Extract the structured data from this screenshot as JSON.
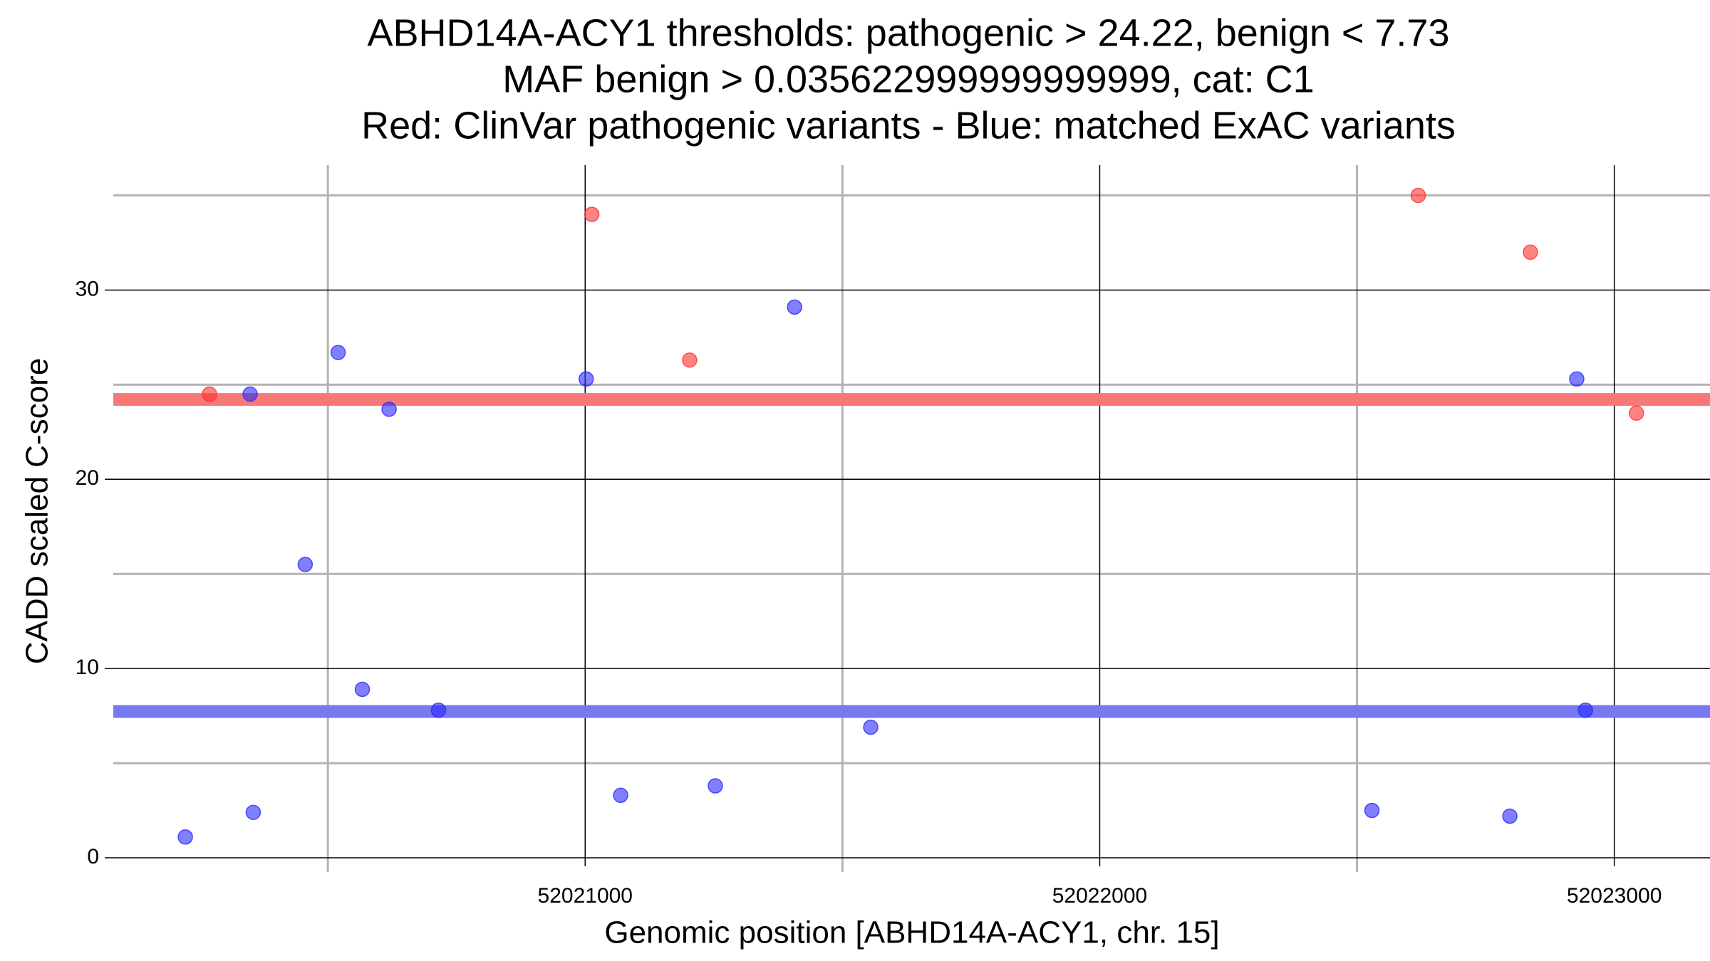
{
  "chart_data": {
    "type": "scatter",
    "title": [
      "ABHD14A-ACY1 thresholds: pathogenic > 24.22, benign < 7.73",
      "MAF benign > 0.035622999999999999, cat: C1",
      "Red: ClinVar pathogenic variants - Blue: matched ExAC variants"
    ],
    "xlabel": "Genomic position [ABHD14A-ACY1, chr. 15]",
    "ylabel": "CADD scaled C-score",
    "xlim": [
      52020083,
      52023186
    ],
    "ylim": [
      0,
      36.6
    ],
    "xticks": [
      52021000,
      52022000,
      52023000
    ],
    "yticks": [
      0,
      10,
      20,
      30
    ],
    "xminor": [
      52020500,
      52021500,
      52022500
    ],
    "yminor": [
      5,
      15,
      25,
      35
    ],
    "grid": true,
    "hlines": [
      {
        "value": 24.22,
        "color": "#f87878"
      },
      {
        "value": 7.73,
        "color": "#7878f0"
      }
    ],
    "series": [
      {
        "color": "#ff3030",
        "x": [
          52020270,
          52021013,
          52021203,
          52022619,
          52022837,
          52023043
        ],
        "values": [
          24.5,
          34.0,
          26.3,
          35.0,
          32.0,
          23.5
        ]
      },
      {
        "color": "#2a2aff",
        "x": [
          52020223,
          52020349,
          52020355,
          52020456,
          52020520,
          52020567,
          52020619,
          52020715,
          52021002,
          52021069,
          52021253,
          52021407,
          52021555,
          52022529,
          52022797,
          52022927,
          52022944
        ],
        "values": [
          1.1,
          24.5,
          2.4,
          15.5,
          26.7,
          8.9,
          23.7,
          7.8,
          25.3,
          3.3,
          3.8,
          29.1,
          6.9,
          2.5,
          2.2,
          25.3,
          7.8
        ]
      }
    ]
  }
}
